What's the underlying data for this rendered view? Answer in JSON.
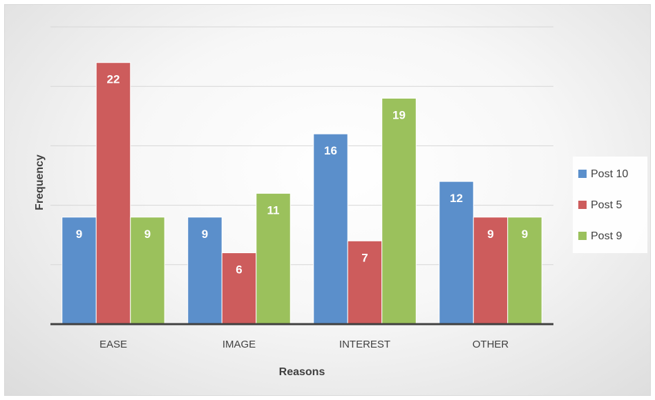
{
  "chart_data": {
    "type": "bar",
    "categories": [
      "EASE",
      "IMAGE",
      "INTEREST",
      "OTHER"
    ],
    "series": [
      {
        "name": "Post 10",
        "color": "#5b8fcb",
        "values": [
          9,
          9,
          16,
          12
        ]
      },
      {
        "name": "Post 5",
        "color": "#cd5c5c",
        "values": [
          22,
          6,
          7,
          9
        ]
      },
      {
        "name": "Post 9",
        "color": "#9bc15c",
        "values": [
          9,
          11,
          19,
          9
        ]
      }
    ],
    "xlabel": "Reasons",
    "ylabel": "Frequency",
    "ylim": [
      0,
      25
    ],
    "y_gridline_step": 5,
    "y_tick_labels_shown": false,
    "data_labels": true,
    "grid": true,
    "legend_position": "right"
  }
}
